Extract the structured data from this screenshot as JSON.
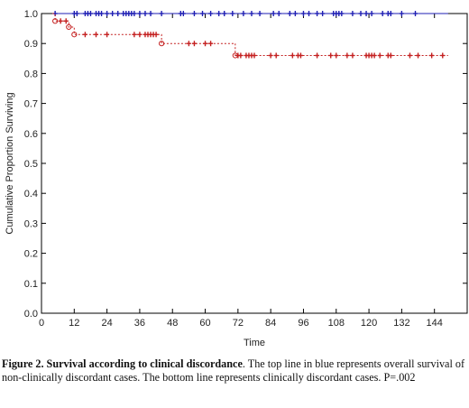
{
  "caption": {
    "label": "Figure 2. Survival according to clinical discordance",
    "text": ". The top line in blue represents overall survival of non-clinically discordant cases. The bottom line represents clinically discordant cases. P=.002"
  },
  "chart_data": {
    "type": "line",
    "title": "",
    "xlabel": "Time",
    "ylabel": "Cumulative Proportion Surviving",
    "xlim": [
      0,
      156
    ],
    "ylim": [
      0,
      1.0
    ],
    "xticks": [
      0,
      12,
      24,
      36,
      48,
      60,
      72,
      84,
      96,
      108,
      120,
      132,
      144
    ],
    "yticks": [
      0.0,
      0.1,
      0.2,
      0.3,
      0.4,
      0.5,
      0.6,
      0.7,
      0.8,
      0.9,
      1.0
    ],
    "grid": false,
    "series": [
      {
        "color": "#1f1fb4",
        "style": "solid",
        "steps": [
          [
            4,
            1.0
          ],
          [
            149,
            1.0
          ]
        ],
        "censored": [
          5,
          12,
          13,
          16,
          17,
          18,
          20,
          21,
          22,
          24,
          26,
          28,
          30,
          31,
          32,
          33,
          34,
          36,
          38,
          40,
          44,
          51,
          52,
          56,
          59,
          62,
          65,
          67,
          70,
          74,
          77,
          80,
          85,
          87,
          91,
          93,
          96,
          98,
          101,
          103,
          107,
          108,
          109,
          110,
          114,
          117,
          119,
          121,
          125,
          127,
          128,
          132,
          137
        ]
      },
      {
        "color": "#c42020",
        "style": "dashed",
        "steps": [
          [
            4,
            1.0
          ],
          [
            5,
            0.975
          ],
          [
            10,
            0.955
          ],
          [
            12,
            0.93
          ],
          [
            44,
            0.9
          ],
          [
            71,
            0.86
          ],
          [
            149,
            0.86
          ]
        ],
        "censored": [
          7,
          9,
          16,
          20,
          24,
          34,
          36,
          38,
          39,
          40,
          41,
          42,
          54,
          56,
          60,
          62,
          72,
          73,
          75,
          76,
          77,
          78,
          84,
          86,
          92,
          94,
          95,
          101,
          106,
          108,
          112,
          114,
          119,
          120,
          121,
          122,
          124,
          127,
          128,
          135,
          138,
          143,
          147
        ]
      }
    ]
  }
}
